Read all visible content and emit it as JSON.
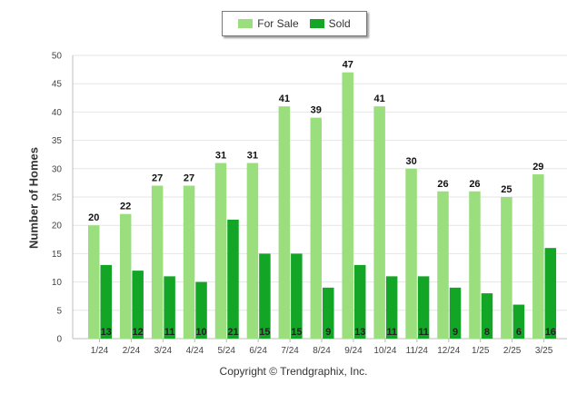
{
  "legend": [
    {
      "name": "For Sale",
      "color": "#9bde7e"
    },
    {
      "name": "Sold",
      "color": "#13a626"
    }
  ],
  "copyright": "Copyright © Trendgraphix, Inc.",
  "chart_data": {
    "type": "bar",
    "title": "",
    "xlabel": "",
    "ylabel": "Number of Homes",
    "ylim": [
      0,
      50
    ],
    "yticks": [
      0,
      5,
      10,
      15,
      20,
      25,
      30,
      35,
      40,
      45,
      50
    ],
    "grid": true,
    "legend_position": "top-center",
    "categories": [
      "1/24",
      "2/24",
      "3/24",
      "4/24",
      "5/24",
      "6/24",
      "7/24",
      "8/24",
      "9/24",
      "10/24",
      "11/24",
      "12/24",
      "1/25",
      "2/25",
      "3/25"
    ],
    "series": [
      {
        "name": "For Sale",
        "color": "#9bde7e",
        "values": [
          20,
          22,
          27,
          27,
          31,
          31,
          41,
          39,
          47,
          41,
          30,
          26,
          26,
          25,
          29
        ]
      },
      {
        "name": "Sold",
        "color": "#13a626",
        "values": [
          13,
          12,
          11,
          10,
          21,
          15,
          15,
          9,
          13,
          11,
          11,
          9,
          8,
          6,
          16
        ]
      }
    ]
  }
}
